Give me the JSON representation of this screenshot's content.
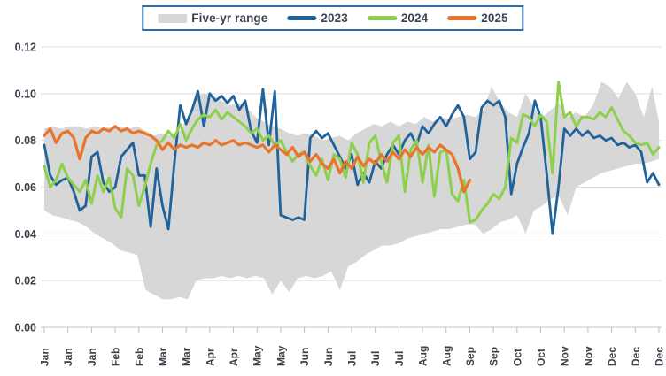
{
  "chart_data": {
    "type": "line",
    "title": "",
    "xlabel": "",
    "ylabel": "",
    "ylim": [
      0,
      0.12
    ],
    "grid": "horizontal",
    "y_tick_values": [
      0,
      0.02,
      0.04,
      0.06,
      0.08,
      0.1,
      0.12
    ],
    "y_tick_labels": [
      "0.00",
      "0.02",
      "0.04",
      "0.06",
      "0.08",
      "0.10",
      "0.12"
    ],
    "x_tick_days": [
      1,
      15,
      29,
      43,
      57,
      71,
      85,
      99,
      113,
      127,
      141,
      155,
      169,
      183,
      197,
      211,
      225,
      239,
      253,
      267,
      281,
      295,
      309,
      323,
      337,
      351,
      365
    ],
    "x_tick_labels": [
      "Jan",
      "Jan",
      "Jan",
      "Feb",
      "Feb",
      "Mar",
      "Mar",
      "Apr",
      "Apr",
      "May",
      "May",
      "Jun",
      "Jun",
      "Jul",
      "Jul",
      "Jul",
      "Aug",
      "Aug",
      "Sep",
      "Sep",
      "Oct",
      "Oct",
      "Nov",
      "Nov",
      "Dec",
      "Dec",
      "Dec"
    ],
    "x_domain_days": [
      1,
      365
    ],
    "band": {
      "name": "Five-yr range",
      "color": "#d7d7d7",
      "x_start": 1,
      "x_step": 5,
      "upper": [
        0.085,
        0.086,
        0.085,
        0.086,
        0.086,
        0.085,
        0.086,
        0.085,
        0.086,
        0.086,
        0.085,
        0.086,
        0.084,
        0.082,
        0.083,
        0.082,
        0.084,
        0.09,
        0.099,
        0.1,
        0.099,
        0.097,
        0.095,
        0.096,
        0.094,
        0.09,
        0.088,
        0.086,
        0.085,
        0.083,
        0.082,
        0.083,
        0.082,
        0.08,
        0.081,
        0.082,
        0.08,
        0.083,
        0.085,
        0.087,
        0.086,
        0.088,
        0.086,
        0.088,
        0.087,
        0.09,
        0.088,
        0.09,
        0.089,
        0.09,
        0.091,
        0.09,
        0.093,
        0.103,
        0.096,
        0.092,
        0.09,
        0.1,
        0.094,
        0.09,
        0.093,
        0.096,
        0.09,
        0.092,
        0.09,
        0.095,
        0.105,
        0.103,
        0.098,
        0.105,
        0.1,
        0.09,
        0.103,
        0.088
      ],
      "lower": [
        0.05,
        0.048,
        0.047,
        0.046,
        0.045,
        0.043,
        0.04,
        0.038,
        0.036,
        0.033,
        0.032,
        0.031,
        0.016,
        0.014,
        0.012,
        0.012,
        0.013,
        0.012,
        0.02,
        0.021,
        0.021,
        0.022,
        0.021,
        0.022,
        0.021,
        0.022,
        0.021,
        0.014,
        0.02,
        0.015,
        0.021,
        0.022,
        0.021,
        0.022,
        0.024,
        0.016,
        0.026,
        0.028,
        0.031,
        0.033,
        0.035,
        0.035,
        0.036,
        0.038,
        0.039,
        0.04,
        0.041,
        0.042,
        0.042,
        0.043,
        0.044,
        0.044,
        0.04,
        0.042,
        0.045,
        0.046,
        0.048,
        0.04,
        0.05,
        0.052,
        0.055,
        0.056,
        0.048,
        0.06,
        0.062,
        0.064,
        0.066,
        0.067,
        0.068,
        0.069,
        0.07,
        0.07,
        0.071,
        0.072
      ]
    },
    "series": [
      {
        "name": "2023",
        "color": "#20639b",
        "x_start": 1,
        "x_step": 3.5,
        "values": [
          0.078,
          0.065,
          0.061,
          0.063,
          0.064,
          0.058,
          0.05,
          0.052,
          0.073,
          0.075,
          0.062,
          0.058,
          0.06,
          0.073,
          0.076,
          0.079,
          0.065,
          0.065,
          0.043,
          0.068,
          0.052,
          0.042,
          0.07,
          0.095,
          0.087,
          0.093,
          0.101,
          0.086,
          0.1,
          0.097,
          0.099,
          0.096,
          0.099,
          0.093,
          0.097,
          0.084,
          0.079,
          0.102,
          0.078,
          0.101,
          0.048,
          0.047,
          0.046,
          0.047,
          0.046,
          0.081,
          0.084,
          0.081,
          0.083,
          0.078,
          0.073,
          0.068,
          0.074,
          0.061,
          0.066,
          0.062,
          0.071,
          0.068,
          0.074,
          0.078,
          0.074,
          0.08,
          0.083,
          0.078,
          0.086,
          0.083,
          0.087,
          0.09,
          0.086,
          0.091,
          0.095,
          0.09,
          0.072,
          0.075,
          0.094,
          0.097,
          0.095,
          0.097,
          0.09,
          0.057,
          0.07,
          0.077,
          0.083,
          0.097,
          0.09,
          0.066,
          0.04,
          0.06,
          0.085,
          0.082,
          0.085,
          0.082,
          0.084,
          0.081,
          0.082,
          0.08,
          0.081,
          0.078,
          0.079,
          0.077,
          0.078,
          0.075,
          0.062,
          0.066,
          0.061
        ]
      },
      {
        "name": "2024",
        "color": "#8ed04c",
        "x_start": 1,
        "x_step": 3.5,
        "values": [
          0.069,
          0.06,
          0.063,
          0.07,
          0.064,
          0.061,
          0.058,
          0.063,
          0.053,
          0.065,
          0.058,
          0.064,
          0.051,
          0.047,
          0.068,
          0.065,
          0.052,
          0.06,
          0.07,
          0.078,
          0.08,
          0.084,
          0.081,
          0.087,
          0.08,
          0.085,
          0.089,
          0.091,
          0.09,
          0.093,
          0.089,
          0.092,
          0.09,
          0.088,
          0.086,
          0.083,
          0.085,
          0.08,
          0.082,
          0.078,
          0.08,
          0.075,
          0.071,
          0.074,
          0.075,
          0.069,
          0.065,
          0.072,
          0.063,
          0.074,
          0.072,
          0.064,
          0.079,
          0.074,
          0.062,
          0.079,
          0.082,
          0.071,
          0.062,
          0.079,
          0.082,
          0.058,
          0.076,
          0.08,
          0.062,
          0.078,
          0.056,
          0.075,
          0.076,
          0.057,
          0.054,
          0.063,
          0.045,
          0.046,
          0.05,
          0.053,
          0.057,
          0.055,
          0.06,
          0.081,
          0.079,
          0.091,
          0.09,
          0.086,
          0.091,
          0.088,
          0.066,
          0.105,
          0.09,
          0.092,
          0.086,
          0.09,
          0.09,
          0.089,
          0.092,
          0.09,
          0.094,
          0.089,
          0.084,
          0.082,
          0.079,
          0.078,
          0.079,
          0.074,
          0.077
        ]
      },
      {
        "name": "2025",
        "color": "#e9752c",
        "x_start": 1,
        "x_step": 3.5,
        "values": [
          0.082,
          0.085,
          0.079,
          0.083,
          0.084,
          0.081,
          0.072,
          0.081,
          0.084,
          0.083,
          0.085,
          0.084,
          0.086,
          0.084,
          0.085,
          0.083,
          0.084,
          0.083,
          0.082,
          0.08,
          0.076,
          0.079,
          0.076,
          0.078,
          0.077,
          0.078,
          0.077,
          0.079,
          0.078,
          0.08,
          0.078,
          0.079,
          0.08,
          0.078,
          0.079,
          0.078,
          0.077,
          0.078,
          0.075,
          0.078,
          0.076,
          0.074,
          0.077,
          0.073,
          0.075,
          0.071,
          0.074,
          0.07,
          0.068,
          0.072,
          0.066,
          0.071,
          0.068,
          0.073,
          0.069,
          0.072,
          0.07,
          0.074,
          0.071,
          0.075,
          0.072,
          0.076,
          0.073,
          0.077,
          0.074,
          0.077,
          0.075,
          0.078,
          0.076,
          0.074,
          0.068,
          0.058,
          0.063
        ]
      }
    ],
    "legend": {
      "position": "top-center",
      "border_color": "#2f6da5",
      "text_color": "#3c4350",
      "entries": [
        {
          "label": "Five-yr range",
          "color": "#d7d7d7",
          "swatch": "band"
        },
        {
          "label": "2023",
          "color": "#20639b",
          "swatch": "line"
        },
        {
          "label": "2024",
          "color": "#8ed04c",
          "swatch": "line"
        },
        {
          "label": "2025",
          "color": "#e9752c",
          "swatch": "line"
        }
      ]
    },
    "axis": {
      "tick_text_color": "#3c4049",
      "grid_color": "#dcdcdc",
      "axis_line_color": "#cfcfcf",
      "tick_mark_color": "#bdbdbd"
    }
  }
}
